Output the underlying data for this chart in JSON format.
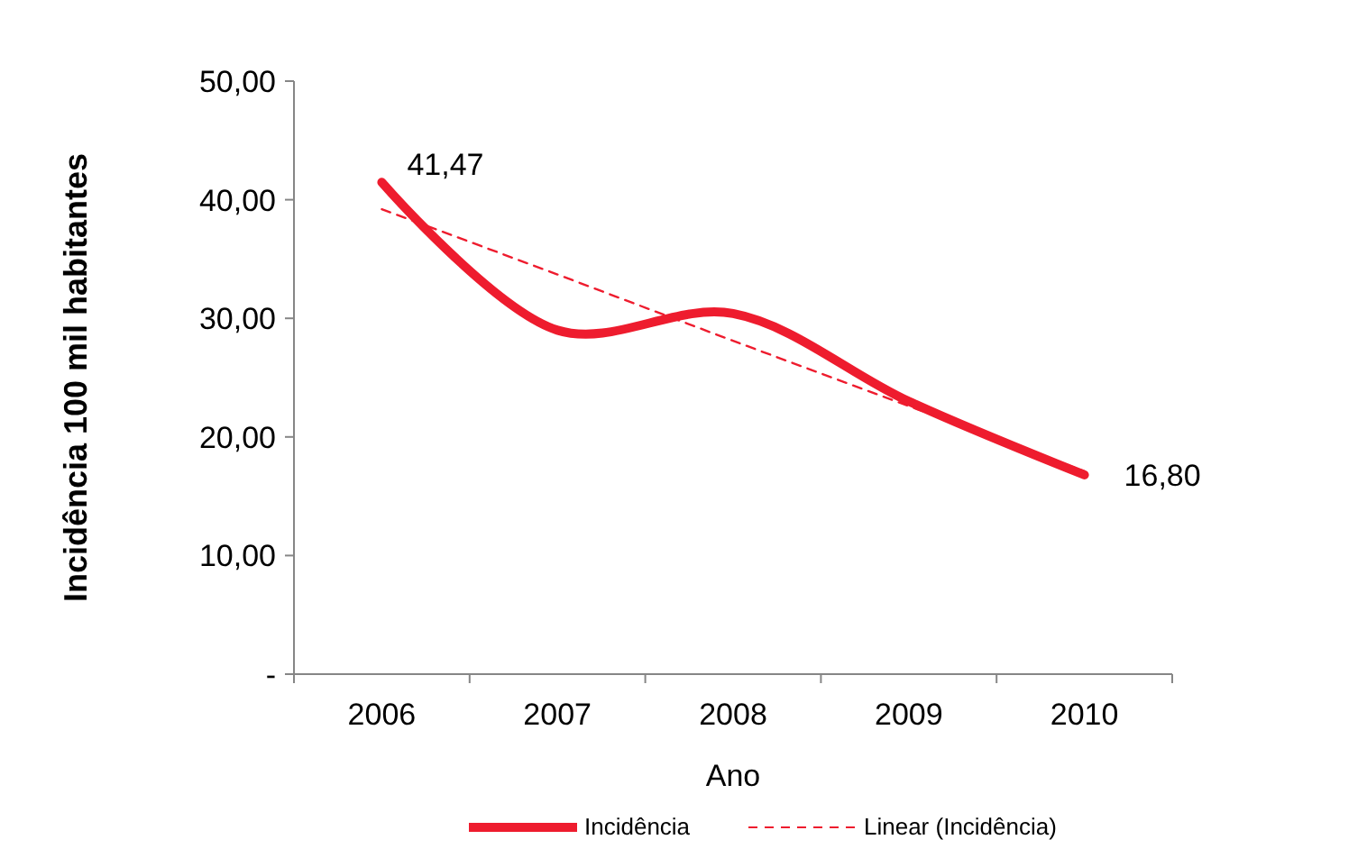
{
  "chart_data": {
    "type": "line",
    "xlabel": "Ano",
    "ylabel": "Incidência 100 mil habitantes",
    "categories": [
      "2006",
      "2007",
      "2008",
      "2009",
      "2010"
    ],
    "series": [
      {
        "name": "Incidência",
        "color": "#ee1c2e",
        "values": [
          41.47,
          29.0,
          30.4,
          23.0,
          16.8
        ],
        "value_labels": [
          "41,47",
          null,
          null,
          null,
          "16,80"
        ]
      },
      {
        "name": "Linear (Incidência)",
        "type": "line",
        "line_style": "dashed",
        "color": "#ee1c2e",
        "values": [
          39.2,
          33.7,
          28.1,
          22.6,
          17.1
        ]
      }
    ],
    "ylim": [
      0,
      50
    ],
    "yticks": [
      {
        "value": 0,
        "label": "-"
      },
      {
        "value": 10,
        "label": "10,00"
      },
      {
        "value": 20,
        "label": "20,00"
      },
      {
        "value": 30,
        "label": "30,00"
      },
      {
        "value": 40,
        "label": "40,00"
      },
      {
        "value": 50,
        "label": "50,00"
      }
    ],
    "grid": false,
    "legend": "bottom",
    "marker": "none",
    "line_style": "solid"
  }
}
